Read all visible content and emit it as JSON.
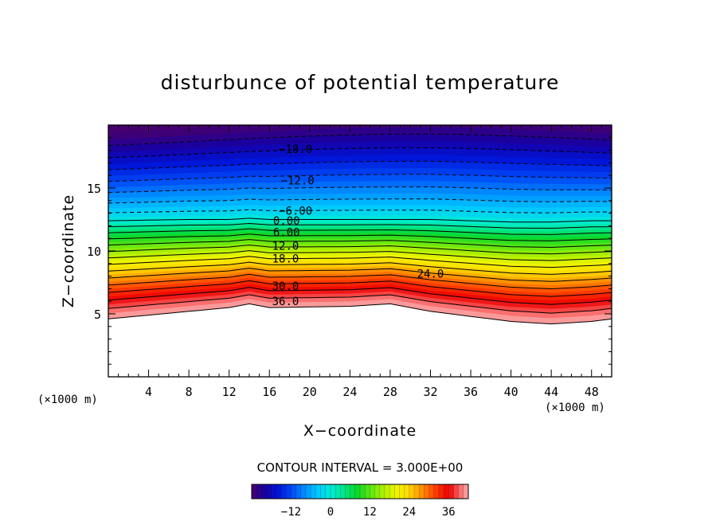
{
  "chart_data": {
    "type": "contour",
    "title": "disturbunce of potential temperature",
    "xlabel": "X−coordinate",
    "ylabel": "Z−coordinate",
    "x_unit_left": "(×1000 m)",
    "x_unit_right": "(×1000 m)",
    "x_ticks": [
      4,
      8,
      12,
      16,
      20,
      24,
      28,
      32,
      36,
      40,
      44,
      48
    ],
    "y_ticks": [
      5,
      10,
      15
    ],
    "xlim": [
      0,
      50
    ],
    "ylim": [
      0,
      20
    ],
    "contour_interval_label": "CONTOUR INTERVAL = 3.000E+00",
    "contour_interval": 3,
    "colorbar": {
      "range": [
        -24,
        42
      ],
      "ticks": [
        -12,
        0,
        12,
        24,
        36
      ],
      "tick_labels": [
        "−12",
        "0",
        "12",
        "24",
        "36"
      ]
    },
    "contour_labels": [
      {
        "text": "−18.0",
        "x": 18.6,
        "z": 18.1
      },
      {
        "text": "−12.0",
        "x": 18.8,
        "z": 15.6
      },
      {
        "text": "−6.00",
        "x": 18.6,
        "z": 13.2
      },
      {
        "text": "0.00",
        "x": 17.7,
        "z": 12.4
      },
      {
        "text": "6.00",
        "x": 17.7,
        "z": 11.5
      },
      {
        "text": "12.0",
        "x": 17.6,
        "z": 10.4
      },
      {
        "text": "18.0",
        "x": 17.6,
        "z": 9.4
      },
      {
        "text": "24.0",
        "x": 32.0,
        "z": 8.2
      },
      {
        "text": "30.0",
        "x": 17.6,
        "z": 7.2
      },
      {
        "text": "36.0",
        "x": 17.6,
        "z": 6.0
      }
    ],
    "field_profile": {
      "x": [
        0,
        8,
        12,
        14,
        16,
        24,
        28,
        32,
        36,
        40,
        44,
        48,
        50
      ],
      "lower_boundary_z": [
        4.6,
        5.2,
        5.5,
        5.8,
        5.5,
        5.6,
        5.8,
        5.2,
        4.8,
        4.4,
        4.2,
        4.4,
        4.6
      ],
      "zero_contour_z": [
        12.4,
        12.5,
        12.5,
        12.6,
        12.5,
        12.5,
        12.5,
        12.5,
        12.4,
        12.3,
        12.3,
        12.4,
        12.4
      ],
      "top_z": 19.8
    }
  }
}
